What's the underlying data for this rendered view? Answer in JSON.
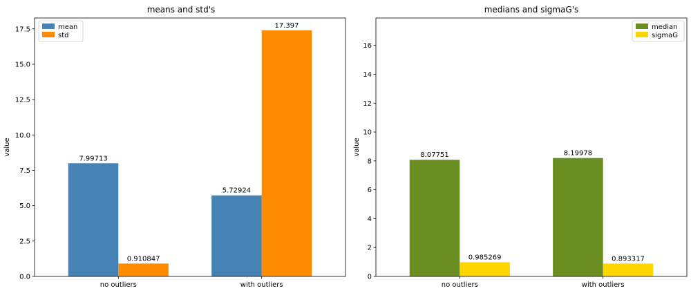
{
  "chart_data": [
    {
      "type": "bar",
      "title": "means and std's",
      "xlabel": "",
      "ylabel": "value",
      "categories": [
        "no outliers",
        "with outliers"
      ],
      "ylim": [
        0,
        18.27
      ],
      "yticks": [
        0.0,
        2.5,
        5.0,
        7.5,
        10.0,
        12.5,
        15.0,
        17.5
      ],
      "ytick_labels": [
        "0.0",
        "2.5",
        "5.0",
        "7.5",
        "10.0",
        "12.5",
        "15.0",
        "17.5"
      ],
      "series": [
        {
          "name": "mean",
          "color": "#4682b4",
          "values": [
            7.99713,
            5.72924
          ],
          "labels": [
            "7.99713",
            "5.72924"
          ]
        },
        {
          "name": "std",
          "color": "#ff8c00",
          "values": [
            0.910847,
            17.397
          ],
          "labels": [
            "0.910847",
            "17.397"
          ]
        }
      ],
      "legend": "top-left",
      "grid": false
    },
    {
      "type": "bar",
      "title": "medians and sigmaG's",
      "xlabel": "",
      "ylabel": "value",
      "categories": [
        "no outliers",
        "with outliers"
      ],
      "ylim": [
        0,
        17.9
      ],
      "yticks": [
        0,
        2,
        4,
        6,
        8,
        10,
        12,
        14,
        16
      ],
      "ytick_labels": [
        "0",
        "2",
        "4",
        "6",
        "8",
        "10",
        "12",
        "14",
        "16"
      ],
      "series": [
        {
          "name": "median",
          "color": "#6b8e23",
          "values": [
            8.07751,
            8.19978
          ],
          "labels": [
            "8.07751",
            "8.19978"
          ]
        },
        {
          "name": "sigmaG",
          "color": "#ffd700",
          "values": [
            0.985269,
            0.893317
          ],
          "labels": [
            "0.985269",
            "0.893317"
          ]
        }
      ],
      "legend": "top-right",
      "grid": false
    }
  ]
}
